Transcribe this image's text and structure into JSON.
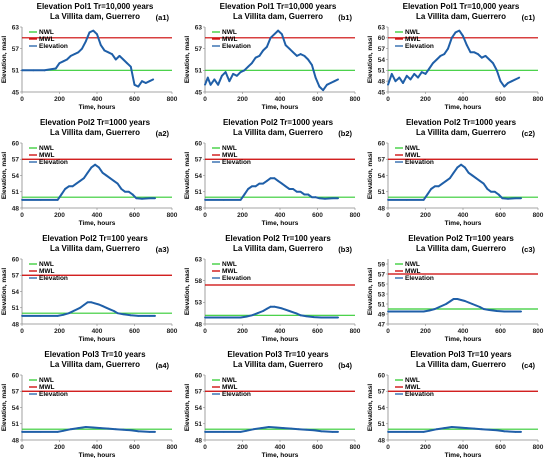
{
  "chart_data": [
    {
      "type": "line",
      "tag": "(a1)",
      "title": [
        "Elevation Pol1 Tr=10,000 years",
        "La Villita dam, Guerrero"
      ],
      "xlabel": "Time, hours",
      "ylabel": "Elevation, masl",
      "xlim": [
        0,
        800
      ],
      "ylim": [
        45,
        63
      ],
      "xticks": [
        "0",
        "200",
        "400",
        "600",
        "800"
      ],
      "yticks": [
        "45",
        "51",
        "57",
        "63"
      ],
      "NWL": 51,
      "MWL": 60,
      "legend": [
        "NWL",
        "MWL",
        "Elevation"
      ],
      "series": [
        {
          "name": "Elevation",
          "x": [
            0,
            60,
            120,
            180,
            200,
            220,
            240,
            260,
            280,
            300,
            320,
            340,
            360,
            380,
            400,
            420,
            440,
            460,
            480,
            500,
            520,
            540,
            560,
            580,
            600,
            620,
            640,
            660,
            680,
            700
          ],
          "y": [
            51,
            51,
            51,
            51.5,
            53,
            53.5,
            54,
            55,
            55.5,
            56,
            57,
            59,
            61.5,
            62,
            61,
            58,
            56.5,
            56,
            55.5,
            54,
            55,
            54,
            53,
            52,
            47,
            46.5,
            48,
            47.5,
            48,
            48.5
          ]
        }
      ]
    },
    {
      "type": "line",
      "tag": "(b1)",
      "title": [
        "Elevation Pol1 Tr=10,000 years",
        "La Villita dam, Guerrero"
      ],
      "xlabel": "Time, hours",
      "ylabel": "Elevation, masl",
      "xlim": [
        0,
        800
      ],
      "ylim": [
        45,
        63
      ],
      "xticks": [
        "0",
        "200",
        "400",
        "600",
        "800"
      ],
      "yticks": [
        "45",
        "51",
        "57",
        "63"
      ],
      "NWL": 51,
      "MWL": 60,
      "legend": [
        "NWL",
        "MWL",
        "Elevation"
      ],
      "series": [
        {
          "name": "Elevation",
          "x": [
            0,
            15,
            30,
            50,
            70,
            90,
            110,
            130,
            150,
            170,
            190,
            210,
            230,
            250,
            270,
            290,
            310,
            330,
            350,
            370,
            390,
            410,
            430,
            450,
            470,
            490,
            510,
            530,
            550,
            570,
            590,
            610,
            630,
            650,
            670,
            690,
            710
          ],
          "y": [
            47,
            49,
            47,
            48.5,
            47,
            49.5,
            50.5,
            48,
            50,
            49.5,
            50.5,
            51,
            52,
            53,
            54.5,
            55,
            56.5,
            57.5,
            60,
            61,
            62,
            61,
            58,
            57,
            56,
            55,
            55.5,
            55,
            54,
            52.5,
            49,
            46.5,
            45.5,
            47,
            47.5,
            48,
            48.5
          ]
        }
      ]
    },
    {
      "type": "line",
      "tag": "(c1)",
      "title": [
        "Elevation Pol1 Tr=10,000 years",
        "La Villita dam, Guerrero"
      ],
      "xlabel": "Time, hours",
      "ylabel": "Elevation, masl",
      "xlim": [
        0,
        800
      ],
      "ylim": [
        45,
        63
      ],
      "xticks": [
        "0",
        "200",
        "400",
        "600",
        "800"
      ],
      "yticks": [
        "45",
        "48",
        "51",
        "54",
        "57",
        "60",
        "63"
      ],
      "NWL": 51,
      "MWL": 60,
      "legend": [
        "NWL",
        "MWL",
        "Elevation"
      ],
      "series": [
        {
          "name": "Elevation",
          "x": [
            0,
            20,
            40,
            60,
            80,
            100,
            120,
            140,
            160,
            180,
            200,
            220,
            240,
            260,
            280,
            300,
            320,
            340,
            360,
            380,
            400,
            420,
            440,
            460,
            480,
            500,
            520,
            540,
            560,
            580,
            600,
            620,
            640,
            660,
            680,
            700
          ],
          "y": [
            47,
            50,
            48,
            49,
            47.5,
            49.5,
            48.5,
            50,
            49,
            50.5,
            50,
            51.5,
            53,
            54,
            55,
            55.5,
            57,
            60,
            61.5,
            62,
            60.5,
            58,
            56,
            56,
            55.5,
            54.5,
            55,
            54,
            53,
            51,
            48,
            46.5,
            47.5,
            48,
            48.5,
            49
          ]
        }
      ]
    },
    {
      "type": "line",
      "tag": "(a2)",
      "title": [
        "Elevation Pol2 Tr=1000 years",
        "La Villita dam, Guerrero"
      ],
      "xlabel": "Time, hours",
      "ylabel": "Elevation, masl",
      "xlim": [
        0,
        800
      ],
      "ylim": [
        48,
        60
      ],
      "xticks": [
        "0",
        "200",
        "400",
        "600",
        "800"
      ],
      "yticks": [
        "48",
        "51",
        "54",
        "57",
        "60"
      ],
      "NWL": 50,
      "MWL": 57,
      "legend": [
        "NWL",
        "MWL",
        "Elevation"
      ],
      "series": [
        {
          "name": "Elevation",
          "x": [
            0,
            100,
            190,
            210,
            230,
            250,
            270,
            290,
            310,
            330,
            350,
            370,
            390,
            410,
            430,
            450,
            470,
            490,
            510,
            530,
            550,
            570,
            590,
            610,
            640,
            680,
            710
          ],
          "y": [
            49.5,
            49.5,
            49.5,
            50.5,
            51.5,
            52,
            52,
            52.5,
            53,
            53.5,
            54.5,
            55.5,
            56,
            55.5,
            54.5,
            54,
            53.5,
            53,
            52.5,
            51.5,
            51,
            51,
            50.5,
            49.8,
            49.7,
            49.8,
            49.8
          ]
        }
      ]
    },
    {
      "type": "line",
      "tag": "(b2)",
      "title": [
        "Elevation Pol2 Tr=1000 years",
        "La Villita dam, Guerrero"
      ],
      "xlabel": "Time, hours",
      "ylabel": "Elevation, masl",
      "xlim": [
        0,
        800
      ],
      "ylim": [
        48,
        60
      ],
      "xticks": [
        "0",
        "200",
        "400",
        "600",
        "800"
      ],
      "yticks": [
        "48",
        "51",
        "54",
        "57",
        "60"
      ],
      "NWL": 50,
      "MWL": 57,
      "legend": [
        "NWL",
        "MWL",
        "Elevation"
      ],
      "series": [
        {
          "name": "Elevation",
          "x": [
            0,
            100,
            190,
            210,
            230,
            250,
            270,
            290,
            310,
            330,
            350,
            370,
            390,
            410,
            430,
            450,
            470,
            490,
            510,
            530,
            550,
            570,
            590,
            610,
            640,
            680,
            710
          ],
          "y": [
            49.5,
            49.5,
            49.5,
            50.5,
            51.5,
            52,
            52,
            52.5,
            52.5,
            53,
            53.5,
            53.5,
            53,
            52.5,
            52,
            51.5,
            51.5,
            51,
            51,
            50.5,
            50.5,
            50,
            50,
            49.8,
            49.7,
            49.8,
            49.8
          ]
        }
      ]
    },
    {
      "type": "line",
      "tag": "(c2)",
      "title": [
        "Elevation Pol2 Tr=1000 years",
        "La Villita dam, Guerrero"
      ],
      "xlabel": "Time, hours",
      "ylabel": "Elevation, masl",
      "xlim": [
        0,
        800
      ],
      "ylim": [
        48,
        60
      ],
      "xticks": [
        "0",
        "200",
        "400",
        "600",
        "800"
      ],
      "yticks": [
        "48",
        "51",
        "54",
        "57",
        "60"
      ],
      "NWL": 50,
      "MWL": 57,
      "legend": [
        "NWL",
        "MWL",
        "Elevation"
      ],
      "series": [
        {
          "name": "Elevation",
          "x": [
            0,
            100,
            190,
            210,
            230,
            250,
            270,
            290,
            310,
            330,
            350,
            370,
            390,
            410,
            430,
            450,
            470,
            490,
            510,
            530,
            550,
            570,
            590,
            610,
            640,
            680,
            710
          ],
          "y": [
            49.5,
            49.5,
            49.5,
            50.5,
            51.5,
            52,
            52,
            52.5,
            53,
            53.5,
            54.5,
            55.5,
            56,
            55.5,
            54.5,
            54,
            53.5,
            53,
            52.5,
            51.5,
            51,
            51,
            50.5,
            49.8,
            49.7,
            49.8,
            49.8
          ]
        }
      ]
    },
    {
      "type": "line",
      "tag": "(a3)",
      "title": [
        "Elevation Pol2 Tr=100 years",
        "La Villita dam, Guerrero"
      ],
      "xlabel": "Time, hours",
      "ylabel": "Elevation, masl",
      "xlim": [
        0,
        800
      ],
      "ylim": [
        48,
        60
      ],
      "xticks": [
        "0",
        "200",
        "400",
        "600",
        "800"
      ],
      "yticks": [
        "48",
        "51",
        "54",
        "57",
        "60"
      ],
      "NWL": 50,
      "MWL": 57,
      "legend": [
        "NWL",
        "MWL",
        "Elevation"
      ],
      "series": [
        {
          "name": "Elevation",
          "x": [
            0,
            100,
            190,
            220,
            250,
            280,
            310,
            330,
            350,
            370,
            390,
            410,
            430,
            450,
            470,
            490,
            510,
            540,
            580,
            620,
            680,
            710
          ],
          "y": [
            49.5,
            49.5,
            49.5,
            49.7,
            50,
            50.5,
            51,
            51.5,
            52,
            52,
            51.8,
            51.6,
            51.3,
            51,
            50.7,
            50.4,
            50,
            49.8,
            49.6,
            49.5,
            49.5,
            49.5
          ]
        }
      ]
    },
    {
      "type": "line",
      "tag": "(b3)",
      "title": [
        "Elevation Pol2 Tr=100 years",
        "La Villita dam, Guerrero"
      ],
      "xlabel": "Time, hours",
      "ylabel": "Elevation, masl",
      "xlim": [
        0,
        800
      ],
      "ylim": [
        48,
        63
      ],
      "xticks": [
        "0",
        "200",
        "400",
        "600",
        "800"
      ],
      "yticks": [
        "48",
        "53",
        "58",
        "63"
      ],
      "NWL": 50,
      "MWL": 57,
      "legend": [
        "NWL",
        "MWL",
        "Elevation"
      ],
      "series": [
        {
          "name": "Elevation",
          "x": [
            0,
            100,
            190,
            220,
            250,
            280,
            310,
            330,
            350,
            370,
            390,
            410,
            430,
            450,
            470,
            490,
            510,
            540,
            580,
            620,
            680,
            710
          ],
          "y": [
            49.5,
            49.5,
            49.5,
            49.7,
            50,
            50.5,
            51,
            51.5,
            52,
            52,
            51.8,
            51.6,
            51.3,
            51,
            50.7,
            50.4,
            50,
            49.8,
            49.6,
            49.5,
            49.5,
            49.5
          ]
        }
      ]
    },
    {
      "type": "line",
      "tag": "(c3)",
      "title": [
        "Elevation Pol2 Tr=100 years",
        "La Villita dam, Guerrero"
      ],
      "xlabel": "Time, hours",
      "ylabel": "Elevation, masl",
      "xlim": [
        0,
        800
      ],
      "ylim": [
        47,
        60
      ],
      "xticks": [
        "0",
        "200",
        "400",
        "600",
        "800"
      ],
      "yticks": [
        "47",
        "49",
        "51",
        "53",
        "55",
        "57",
        "59"
      ],
      "NWL": 50,
      "MWL": 57,
      "legend": [
        "NWL",
        "MWL",
        "Elevation"
      ],
      "series": [
        {
          "name": "Elevation",
          "x": [
            0,
            100,
            190,
            220,
            250,
            280,
            310,
            330,
            350,
            370,
            390,
            410,
            430,
            450,
            470,
            490,
            510,
            540,
            580,
            620,
            680,
            710
          ],
          "y": [
            49.5,
            49.5,
            49.5,
            49.7,
            50,
            50.5,
            51,
            51.5,
            52,
            52,
            51.8,
            51.6,
            51.3,
            51,
            50.7,
            50.4,
            50,
            49.8,
            49.6,
            49.5,
            49.5,
            49.5
          ]
        }
      ]
    },
    {
      "type": "line",
      "tag": "(a4)",
      "title": [
        "Elevation Pol3 Tr=10 years",
        "La Villita dam, Guerrero"
      ],
      "xlabel": "Time, hours",
      "ylabel": "Elevation, masl",
      "xlim": [
        0,
        800
      ],
      "ylim": [
        48,
        60
      ],
      "xticks": [
        "0",
        "200",
        "400",
        "600",
        "800"
      ],
      "yticks": [
        "48",
        "51",
        "54",
        "57",
        "60"
      ],
      "NWL": 50,
      "MWL": 57,
      "legend": [
        "NWL",
        "MWL",
        "Elevation"
      ],
      "series": [
        {
          "name": "Elevation",
          "x": [
            0,
            100,
            190,
            220,
            260,
            300,
            340,
            380,
            420,
            460,
            500,
            540,
            580,
            620,
            680,
            710
          ],
          "y": [
            49.5,
            49.5,
            49.5,
            49.7,
            50,
            50.2,
            50.4,
            50.3,
            50.2,
            50.1,
            50,
            49.9,
            49.8,
            49.6,
            49.5,
            49.5
          ]
        }
      ]
    },
    {
      "type": "line",
      "tag": "(b4)",
      "title": [
        "Elevation Pol3 Tr=10 years",
        "La Villita dam, Guerrero"
      ],
      "xlabel": "Time, hours",
      "ylabel": "Elevation, masl",
      "xlim": [
        0,
        800
      ],
      "ylim": [
        48,
        60
      ],
      "xticks": [
        "0",
        "200",
        "400",
        "600",
        "800"
      ],
      "yticks": [
        "48",
        "51",
        "54",
        "57",
        "60"
      ],
      "NWL": 50,
      "MWL": 57,
      "legend": [
        "NWL",
        "MWL",
        "Elevation"
      ],
      "series": [
        {
          "name": "Elevation",
          "x": [
            0,
            100,
            190,
            220,
            260,
            300,
            340,
            380,
            420,
            460,
            500,
            540,
            580,
            620,
            680,
            710
          ],
          "y": [
            49.5,
            49.5,
            49.5,
            49.7,
            50,
            50.2,
            50.4,
            50.3,
            50.2,
            50.1,
            50,
            49.9,
            49.8,
            49.6,
            49.5,
            49.5
          ]
        }
      ]
    },
    {
      "type": "line",
      "tag": "(c4)",
      "title": [
        "Elevation Pol3 Tr=10 years",
        "La Villita dam, Guerrero"
      ],
      "xlabel": "Time, hours",
      "ylabel": "Elevation, masl",
      "xlim": [
        0,
        800
      ],
      "ylim": [
        48,
        60
      ],
      "xticks": [
        "0",
        "200",
        "400",
        "600",
        "800"
      ],
      "yticks": [
        "48",
        "51",
        "54",
        "57",
        "60"
      ],
      "NWL": 50,
      "MWL": 57,
      "legend": [
        "NWL",
        "MWL",
        "Elevation"
      ],
      "series": [
        {
          "name": "Elevation",
          "x": [
            0,
            100,
            190,
            220,
            260,
            300,
            340,
            380,
            420,
            460,
            500,
            540,
            580,
            620,
            680,
            710
          ],
          "y": [
            49.5,
            49.5,
            49.5,
            49.7,
            50,
            50.2,
            50.4,
            50.3,
            50.2,
            50.1,
            50,
            49.9,
            49.8,
            49.6,
            49.5,
            49.5
          ]
        }
      ]
    }
  ],
  "colors": {
    "nwl": "#33cc33",
    "mwl": "#cc0000",
    "elevation": "#1f5fa8",
    "axis": "#888888"
  }
}
